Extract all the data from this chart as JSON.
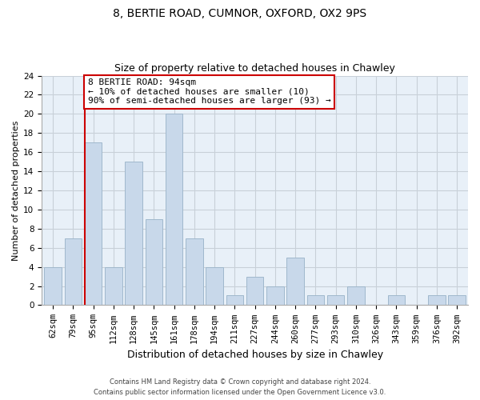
{
  "title_line1": "8, BERTIE ROAD, CUMNOR, OXFORD, OX2 9PS",
  "title_line2": "Size of property relative to detached houses in Chawley",
  "xlabel": "Distribution of detached houses by size in Chawley",
  "ylabel": "Number of detached properties",
  "bar_color": "#c8d8ea",
  "bar_edge_color": "#a0b8cc",
  "highlight_color": "#cc0000",
  "categories": [
    "62sqm",
    "79sqm",
    "95sqm",
    "112sqm",
    "128sqm",
    "145sqm",
    "161sqm",
    "178sqm",
    "194sqm",
    "211sqm",
    "227sqm",
    "244sqm",
    "260sqm",
    "277sqm",
    "293sqm",
    "310sqm",
    "326sqm",
    "343sqm",
    "359sqm",
    "376sqm",
    "392sqm"
  ],
  "values": [
    4,
    7,
    17,
    4,
    15,
    9,
    20,
    7,
    4,
    1,
    3,
    2,
    5,
    1,
    1,
    2,
    0,
    1,
    0,
    1,
    1
  ],
  "highlight_index": 2,
  "ylim": [
    0,
    24
  ],
  "yticks": [
    0,
    2,
    4,
    6,
    8,
    10,
    12,
    14,
    16,
    18,
    20,
    22,
    24
  ],
  "annotation_title": "8 BERTIE ROAD: 94sqm",
  "annotation_line2": "← 10% of detached houses are smaller (10)",
  "annotation_line3": "90% of semi-detached houses are larger (93) →",
  "footer_line1": "Contains HM Land Registry data © Crown copyright and database right 2024.",
  "footer_line2": "Contains public sector information licensed under the Open Government Licence v3.0.",
  "background_color": "#ffffff",
  "grid_color": "#c8d0d8",
  "title_fontsize": 10,
  "subtitle_fontsize": 9,
  "ylabel_fontsize": 8,
  "xlabel_fontsize": 9,
  "tick_fontsize": 7.5,
  "footer_fontsize": 6,
  "ann_fontsize": 8
}
